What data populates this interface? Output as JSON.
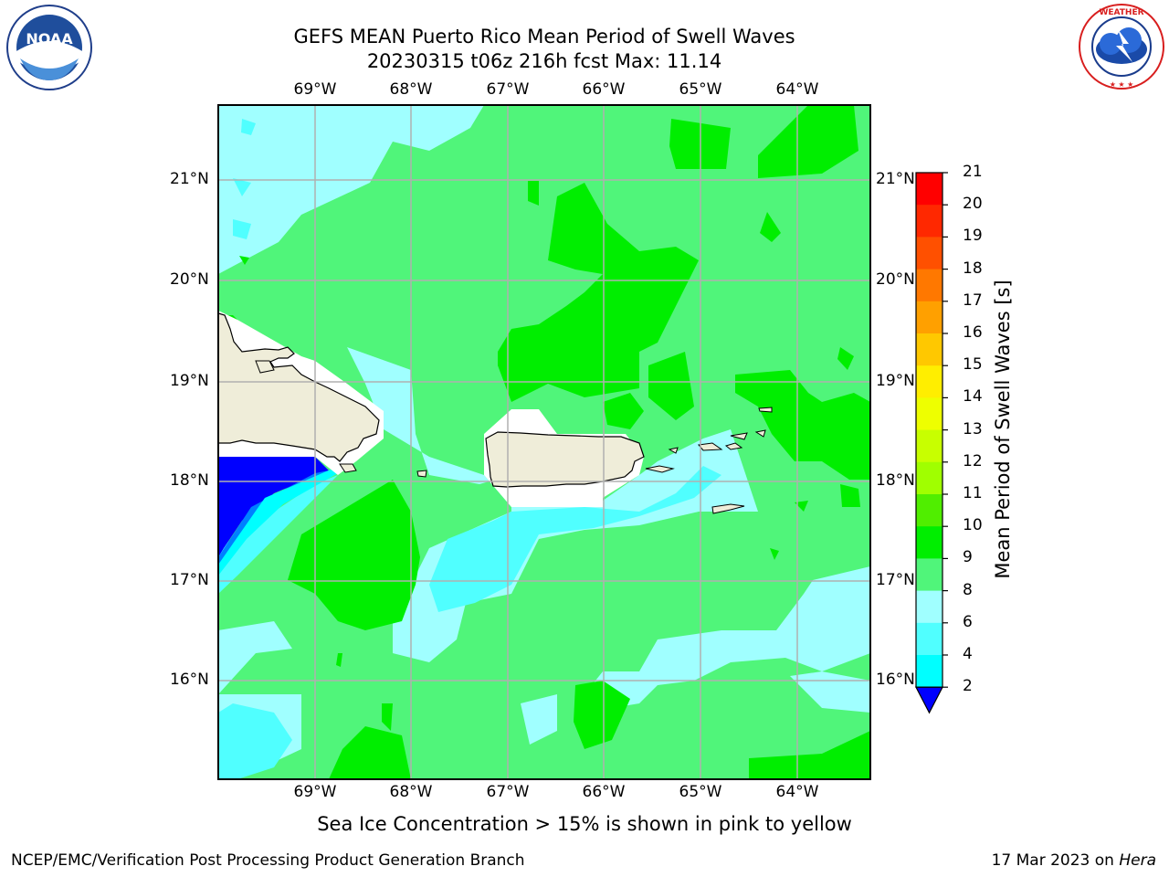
{
  "title_line1": "GEFS MEAN Puerto Rico Mean Period of Swell Waves",
  "title_line2": "20230315 t06z 216h fcst   Max: 11.14",
  "lon_labels": [
    "69°W",
    "68°W",
    "67°W",
    "66°W",
    "65°W",
    "64°W"
  ],
  "lat_labels": [
    "21°N",
    "20°N",
    "19°N",
    "18°N",
    "17°N",
    "16°N"
  ],
  "colorbar": {
    "title": "Mean Period of Swell Waves [s]",
    "tick_labels": [
      "21",
      "20",
      "19",
      "18",
      "17",
      "16",
      "15",
      "14",
      "13",
      "12",
      "11",
      "10",
      "9",
      "8",
      "6",
      "4",
      "2"
    ],
    "colors": [
      "#ff0000",
      "#ff2800",
      "#ff5000",
      "#ff7800",
      "#ffa000",
      "#ffc800",
      "#ffee00",
      "#eeff00",
      "#c8ff00",
      "#a0ff00",
      "#50ee00",
      "#00ee00",
      "#50f57a",
      "#a0ffff",
      "#50ffff",
      "#00ffff",
      "#0080ff",
      "#0000ff"
    ]
  },
  "footer_note": "Sea Ice Concentration > 15% is shown in pink to yellow",
  "credit": "NCEP/EMC/Verification Post Processing Product Generation Branch",
  "date": "17 Mar 2023 on",
  "machine": "Hera",
  "logos": {
    "left": "NOAA",
    "right": "NATIONAL WEATHER SERVICE"
  },
  "colors": {
    "land": "#efedd9",
    "c2": "#0000ff",
    "c4": "#0080ff",
    "c6": "#00ffff",
    "c8": "#50ffff",
    "c9": "#a0ffff",
    "c10": "#50f57a",
    "c11": "#00ee00",
    "grid": "#b0b0b0"
  }
}
